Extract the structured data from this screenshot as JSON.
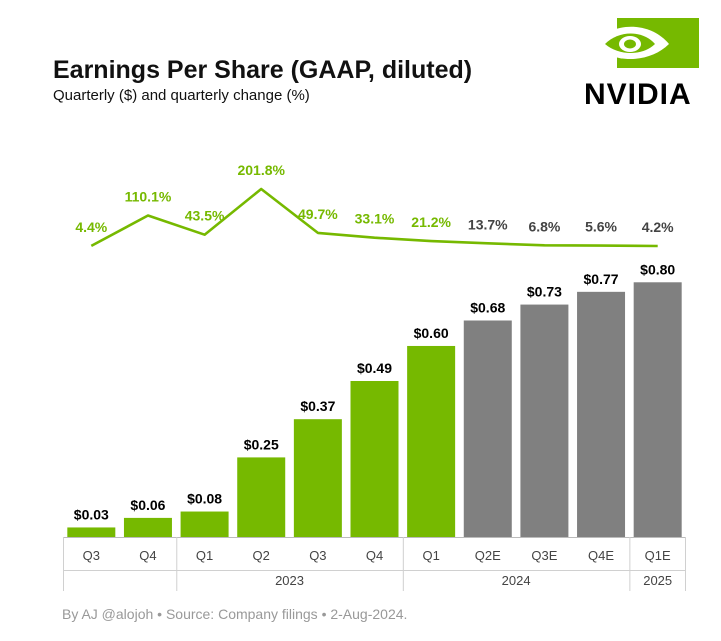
{
  "header": {
    "title": "Earnings Per Share (GAAP, diluted)",
    "subtitle": "Quarterly ($) and quarterly change (%)"
  },
  "brand": {
    "name": "NVIDIA",
    "color": "#76b900"
  },
  "footer": {
    "text": "By AJ @alojoh • Source: Company filings • 2-Aug-2024."
  },
  "colors": {
    "actual": "#76b900",
    "estimate": "#808080",
    "estimate_label": "#444444",
    "line": "#76b900"
  },
  "chart_data": {
    "type": "bar",
    "title": "Earnings Per Share (GAAP, diluted)",
    "subtitle": "Quarterly ($) and quarterly change (%)",
    "categories": [
      "Q3",
      "Q4",
      "Q1",
      "Q2",
      "Q3",
      "Q4",
      "Q1",
      "Q2E",
      "Q3E",
      "Q4E",
      "Q1E"
    ],
    "values": [
      0.03,
      0.06,
      0.08,
      0.25,
      0.37,
      0.49,
      0.6,
      0.68,
      0.73,
      0.77,
      0.8
    ],
    "value_labels": [
      "$0.03",
      "$0.06",
      "$0.08",
      "$0.25",
      "$0.37",
      "$0.49",
      "$0.60",
      "$0.68",
      "$0.73",
      "$0.77",
      "$0.80"
    ],
    "estimate": [
      false,
      false,
      false,
      false,
      false,
      false,
      false,
      true,
      true,
      true,
      true
    ],
    "ylim": [
      0,
      0.87
    ],
    "change_series": {
      "name": "Quarterly change (%)",
      "type": "line",
      "values": [
        4.4,
        110.1,
        43.5,
        201.8,
        49.7,
        33.1,
        21.2,
        13.7,
        6.8,
        5.6,
        4.2
      ],
      "labels": [
        "4.4%",
        "110.1%",
        "43.5%",
        "201.8%",
        "49.7%",
        "33.1%",
        "21.2%",
        "13.7%",
        "6.8%",
        "5.6%",
        "4.2%"
      ]
    },
    "year_groups": [
      {
        "label": "",
        "start": 0,
        "end": 1
      },
      {
        "label": "2023",
        "start": 2,
        "end": 5
      },
      {
        "label": "2024",
        "start": 6,
        "end": 9
      },
      {
        "label": "2025",
        "start": 10,
        "end": 10
      }
    ]
  }
}
